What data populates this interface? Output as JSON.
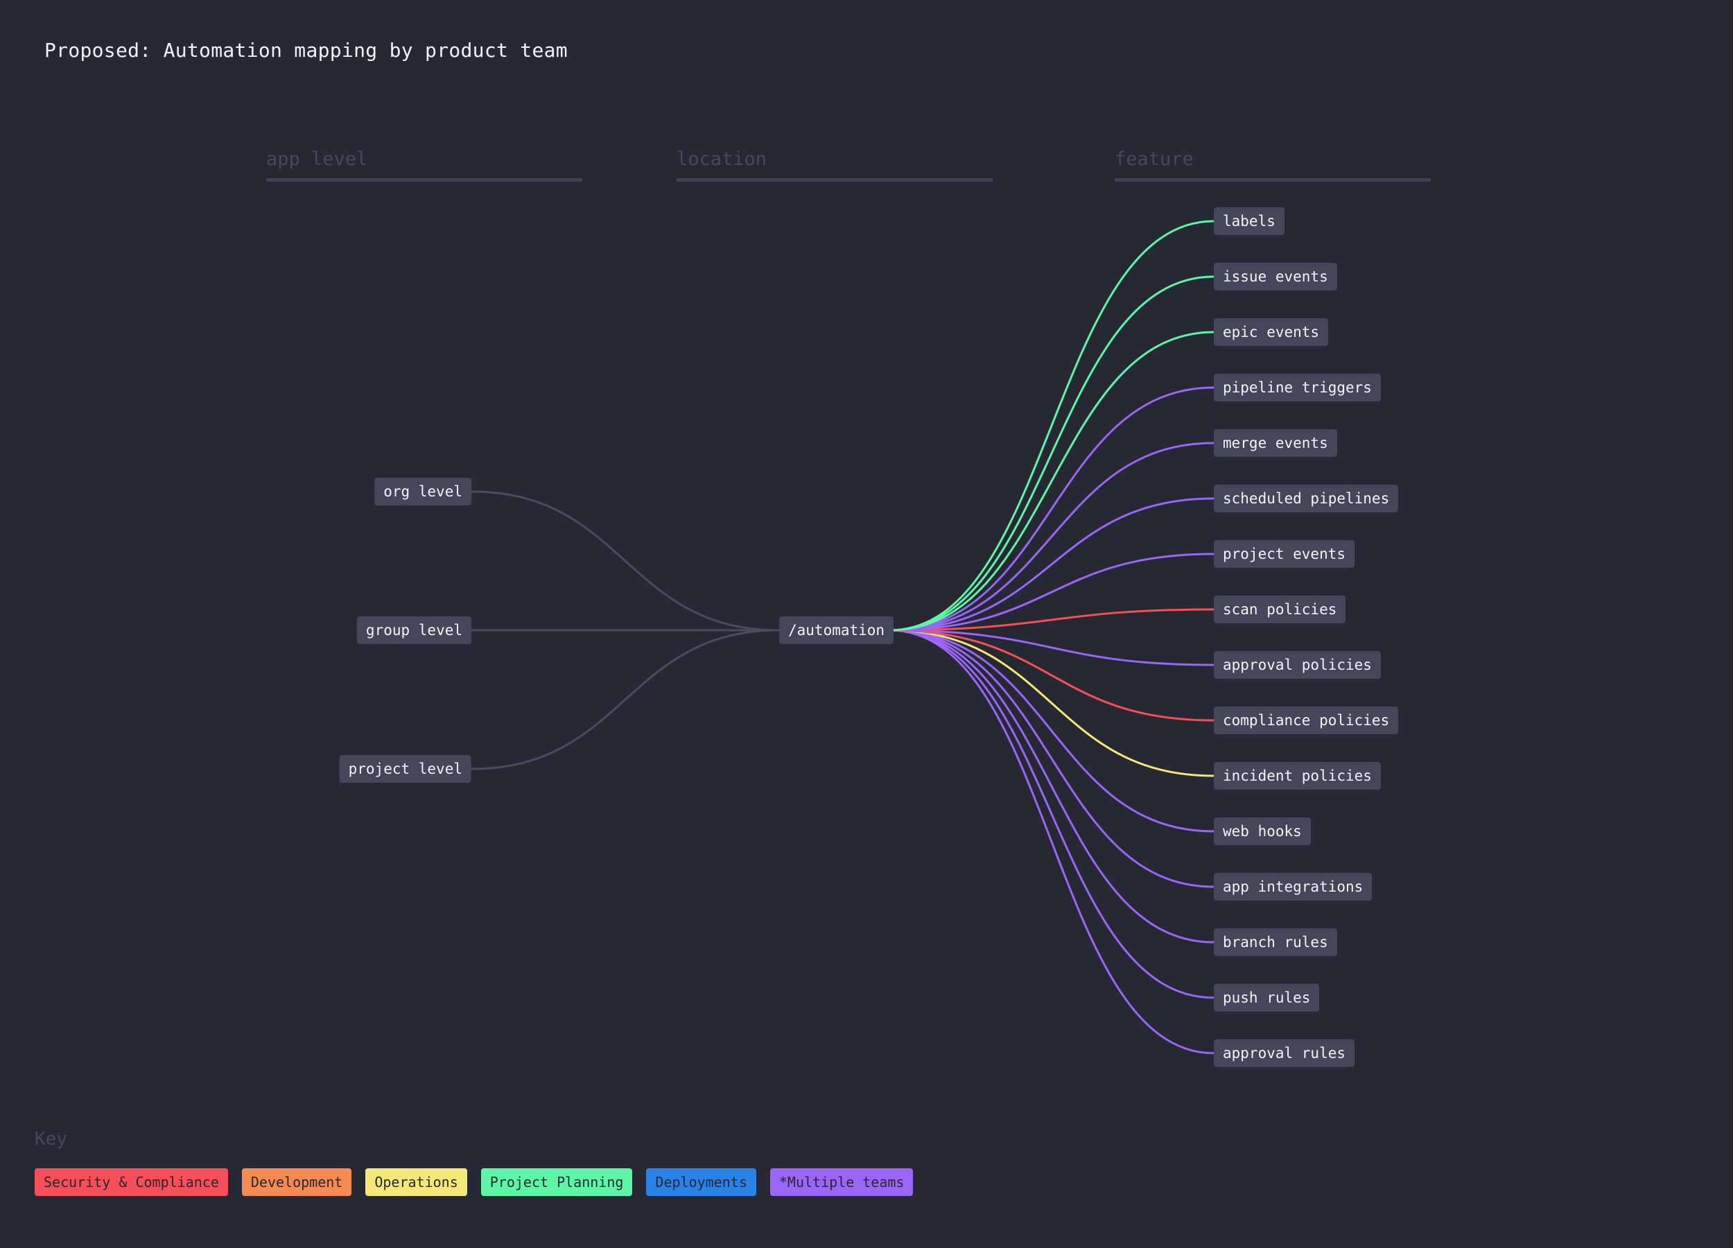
{
  "title": "Proposed: Automation mapping by product team",
  "columns": {
    "app_level": "app level",
    "location": "location",
    "feature": "feature"
  },
  "left_nodes": [
    {
      "label": "org level"
    },
    {
      "label": "group level"
    },
    {
      "label": "project level"
    }
  ],
  "center_node": {
    "label": "/automation"
  },
  "features": [
    {
      "label": "labels",
      "team": "project-planning",
      "color": "#5ff5a6"
    },
    {
      "label": "issue events",
      "team": "project-planning",
      "color": "#5ff5a6"
    },
    {
      "label": "epic events",
      "team": "project-planning",
      "color": "#5ff5a6"
    },
    {
      "label": "pipeline triggers",
      "team": "multiple-teams",
      "color": "#9966f5"
    },
    {
      "label": "merge events",
      "team": "multiple-teams",
      "color": "#9966f5"
    },
    {
      "label": "scheduled pipelines",
      "team": "multiple-teams",
      "color": "#9966f5"
    },
    {
      "label": "project events",
      "team": "multiple-teams",
      "color": "#9966f5"
    },
    {
      "label": "scan policies",
      "team": "security-compliance",
      "color": "#f5505a"
    },
    {
      "label": "approval policies",
      "team": "multiple-teams",
      "color": "#9966f5"
    },
    {
      "label": "compliance policies",
      "team": "security-compliance",
      "color": "#f5505a"
    },
    {
      "label": "incident policies",
      "team": "operations",
      "color": "#f5e878"
    },
    {
      "label": "web hooks",
      "team": "multiple-teams",
      "color": "#9966f5"
    },
    {
      "label": "app integrations",
      "team": "multiple-teams",
      "color": "#9966f5"
    },
    {
      "label": "branch rules",
      "team": "multiple-teams",
      "color": "#9966f5"
    },
    {
      "label": "push rules",
      "team": "multiple-teams",
      "color": "#9966f5"
    },
    {
      "label": "approval rules",
      "team": "multiple-teams",
      "color": "#9966f5"
    }
  ],
  "key": {
    "title": "Key",
    "items": [
      {
        "label": "Security & Compliance",
        "color": "#f5505a"
      },
      {
        "label": "Development",
        "color": "#f58a52"
      },
      {
        "label": "Operations",
        "color": "#f5e878"
      },
      {
        "label": "Project Planning",
        "color": "#5ff5a6"
      },
      {
        "label": "Deployments",
        "color": "#2a82e6"
      },
      {
        "label": "*Multiple teams",
        "color": "#9966f5"
      }
    ]
  },
  "colors": {
    "background": "#262833",
    "node": "#444659",
    "left_link": "#4a4c5c"
  }
}
